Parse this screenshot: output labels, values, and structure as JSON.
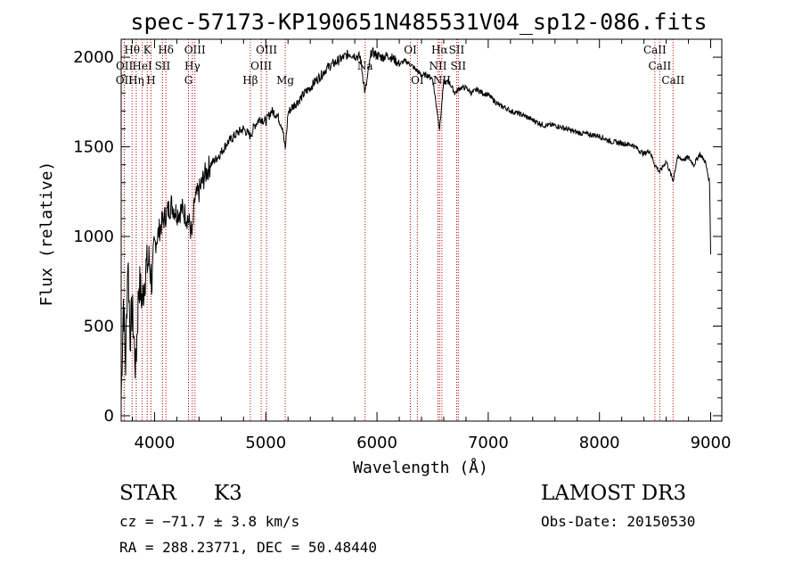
{
  "chart_data": {
    "type": "line",
    "title": "spec-57173-KP190651N485531V04_sp12-086.fits",
    "xlabel": "Wavelength (Å)",
    "ylabel": "Flux (relative)",
    "xlim": [
      3700,
      9100
    ],
    "ylim": [
      -30,
      2100
    ],
    "xticks": [
      4000,
      5000,
      6000,
      7000,
      8000,
      9000
    ],
    "yticks": [
      0,
      500,
      1000,
      1500,
      2000
    ],
    "series": [
      {
        "name": "spectrum",
        "x": [
          3700,
          3720,
          3740,
          3760,
          3780,
          3800,
          3830,
          3860,
          3890,
          3920,
          3950,
          3980,
          4000,
          4050,
          4100,
          4150,
          4200,
          4250,
          4300,
          4340,
          4360,
          4400,
          4450,
          4500,
          4550,
          4600,
          4650,
          4700,
          4750,
          4800,
          4861,
          4900,
          4950,
          5000,
          5050,
          5100,
          5150,
          5175,
          5200,
          5250,
          5300,
          5350,
          5400,
          5450,
          5500,
          5550,
          5600,
          5650,
          5700,
          5750,
          5800,
          5850,
          5893,
          5950,
          6000,
          6050,
          6100,
          6150,
          6200,
          6250,
          6300,
          6350,
          6400,
          6450,
          6500,
          6563,
          6600,
          6650,
          6700,
          6750,
          6800,
          6850,
          6900,
          6950,
          7000,
          7050,
          7100,
          7150,
          7200,
          7300,
          7400,
          7500,
          7600,
          7700,
          7800,
          7900,
          8000,
          8100,
          8200,
          8300,
          8400,
          8450,
          8498,
          8542,
          8600,
          8662,
          8700,
          8750,
          8800,
          8850,
          8900,
          8950,
          8990,
          9000
        ],
        "y": [
          100,
          650,
          280,
          900,
          450,
          600,
          250,
          750,
          640,
          820,
          860,
          740,
          950,
          1050,
          1120,
          1180,
          1130,
          1150,
          1100,
          1000,
          1200,
          1250,
          1340,
          1400,
          1430,
          1470,
          1520,
          1550,
          1580,
          1600,
          1560,
          1620,
          1660,
          1640,
          1700,
          1680,
          1610,
          1480,
          1690,
          1730,
          1760,
          1800,
          1830,
          1870,
          1900,
          1940,
          1960,
          1980,
          2000,
          2020,
          2010,
          2000,
          1800,
          2030,
          2010,
          2000,
          2010,
          1990,
          1960,
          1980,
          1960,
          1930,
          1900,
          1900,
          1880,
          1600,
          1860,
          1860,
          1800,
          1830,
          1830,
          1800,
          1820,
          1800,
          1790,
          1760,
          1730,
          1720,
          1700,
          1680,
          1650,
          1620,
          1620,
          1600,
          1580,
          1570,
          1560,
          1530,
          1520,
          1510,
          1460,
          1480,
          1400,
          1360,
          1420,
          1310,
          1440,
          1430,
          1440,
          1400,
          1460,
          1420,
          1300,
          900
        ]
      }
    ],
    "line_markers": [
      {
        "label": "OII",
        "wavelength": 3727,
        "row": 0
      },
      {
        "label": "OII",
        "wavelength": 3729,
        "row": 1
      },
      {
        "label": "Hθ",
        "wavelength": 3798,
        "row": 2
      },
      {
        "label": "Hη",
        "wavelength": 3835,
        "row": 0
      },
      {
        "label": "HeI",
        "wavelength": 3889,
        "row": 1
      },
      {
        "label": "K",
        "wavelength": 3934,
        "row": 2
      },
      {
        "label": "H",
        "wavelength": 3968,
        "row": 0
      },
      {
        "label": "SII",
        "wavelength": 4072,
        "row": 1
      },
      {
        "label": "Hδ",
        "wavelength": 4102,
        "row": 2
      },
      {
        "label": "G",
        "wavelength": 4305,
        "row": 0
      },
      {
        "label": "Hγ",
        "wavelength": 4340,
        "row": 1
      },
      {
        "label": "OIII",
        "wavelength": 4363,
        "row": 2
      },
      {
        "label": "Hβ",
        "wavelength": 4861,
        "row": 0
      },
      {
        "label": "OIII",
        "wavelength": 4959,
        "row": 1
      },
      {
        "label": "OIII",
        "wavelength": 5007,
        "row": 2
      },
      {
        "label": "Mg",
        "wavelength": 5175,
        "row": 0
      },
      {
        "label": "Na",
        "wavelength": 5893,
        "row": 1
      },
      {
        "label": "OI",
        "wavelength": 6300,
        "row": 2
      },
      {
        "label": "OI",
        "wavelength": 6363,
        "row": 0
      },
      {
        "label": "NII",
        "wavelength": 6548,
        "row": 1
      },
      {
        "label": "Hα",
        "wavelength": 6563,
        "row": 2
      },
      {
        "label": "NII",
        "wavelength": 6583,
        "row": 0
      },
      {
        "label": "SII",
        "wavelength": 6716,
        "row": 2
      },
      {
        "label": "SII",
        "wavelength": 6731,
        "row": 1
      },
      {
        "label": "CaII",
        "wavelength": 8498,
        "row": 2
      },
      {
        "label": "CaII",
        "wavelength": 8542,
        "row": 1
      },
      {
        "label": "CaII",
        "wavelength": 8662,
        "row": 0
      }
    ]
  },
  "info": {
    "object_class": "STAR",
    "subclass": "K3",
    "survey": "LAMOST DR3",
    "cz": "cz = −71.7 ± 3.8 km/s",
    "obs_date": "Obs-Date: 20150530",
    "coords": "RA = 288.23771, DEC =  50.48440"
  }
}
